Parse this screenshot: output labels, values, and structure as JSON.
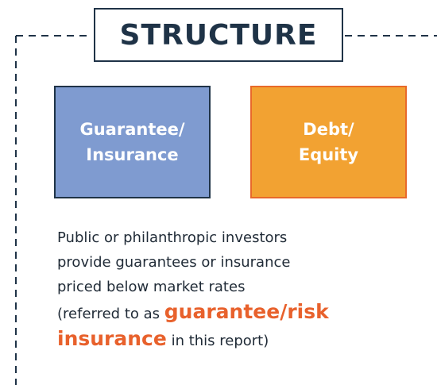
{
  "title": "STRUCTURE",
  "boxes": [
    {
      "lines": [
        "Guarantee/",
        "Insurance"
      ]
    },
    {
      "lines": [
        "Debt/",
        "Equity"
      ]
    }
  ],
  "description": {
    "lines": [
      "Public or philanthropic investors",
      "provide guarantees or insurance",
      "priced below market rates"
    ],
    "before": "(referred to as",
    "highlight": [
      "guarantee/risk",
      "insurance"
    ],
    "after": "in this report)"
  }
}
